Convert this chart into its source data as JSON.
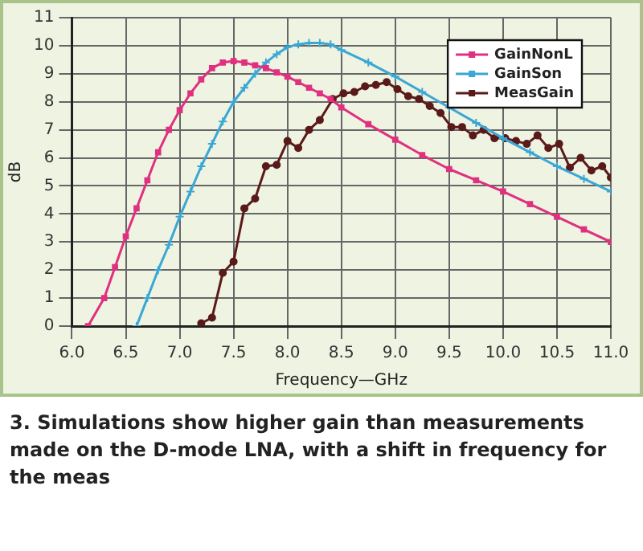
{
  "chart_data": {
    "type": "line",
    "xlabel": "Frequency—GHz",
    "ylabel": "dB",
    "xlim": [
      6.0,
      11.0
    ],
    "ylim": [
      0,
      11
    ],
    "xticks": [
      {
        "value": 6,
        "label": "6.0"
      },
      {
        "value": 6.5,
        "label": "6.5"
      },
      {
        "value": 7,
        "label": "7.0"
      },
      {
        "value": 7.5,
        "label": "7.5"
      },
      {
        "value": 8,
        "label": "8.0"
      },
      {
        "value": 8.5,
        "label": "8.5"
      },
      {
        "value": 9,
        "label": "9.0"
      },
      {
        "value": 9.5,
        "label": "9.5"
      },
      {
        "value": 10,
        "label": "10.0"
      },
      {
        "value": 10.5,
        "label": "10.5"
      },
      {
        "value": 11,
        "label": "11.0"
      }
    ],
    "yticks": [
      0,
      1,
      2,
      3,
      4,
      5,
      6,
      7,
      8,
      9,
      10,
      11
    ],
    "grid": true,
    "legend": "top right",
    "line_style": "solid",
    "series": [
      {
        "name": "GainNonL",
        "color": "#e0307f",
        "marker": "square",
        "x": [
          6.15,
          6.3,
          6.4,
          6.5,
          6.6,
          6.7,
          6.8,
          6.9,
          7.0,
          7.1,
          7.2,
          7.3,
          7.4,
          7.5,
          7.6,
          7.7,
          7.8,
          7.9,
          8.0,
          8.1,
          8.2,
          8.3,
          8.4,
          8.5,
          8.75,
          9.0,
          9.25,
          9.5,
          9.75,
          10.0,
          10.25,
          10.5,
          10.75,
          11.0
        ],
        "values": [
          0,
          1.0,
          2.1,
          3.2,
          4.2,
          5.2,
          6.2,
          7.0,
          7.7,
          8.3,
          8.8,
          9.2,
          9.4,
          9.45,
          9.4,
          9.3,
          9.2,
          9.05,
          8.9,
          8.7,
          8.5,
          8.3,
          8.1,
          7.8,
          7.2,
          6.65,
          6.1,
          5.6,
          5.2,
          4.8,
          4.35,
          3.9,
          3.45,
          3.0
        ]
      },
      {
        "name": "GainSon",
        "color": "#3ba7d4",
        "marker": "cross",
        "x": [
          6.6,
          6.7,
          6.8,
          6.9,
          7.0,
          7.1,
          7.2,
          7.3,
          7.4,
          7.5,
          7.6,
          7.7,
          7.8,
          7.9,
          8.0,
          8.1,
          8.2,
          8.3,
          8.4,
          8.5,
          8.75,
          9.0,
          9.25,
          9.5,
          9.75,
          10.0,
          10.25,
          10.5,
          10.75,
          11.0
        ],
        "values": [
          0,
          1.0,
          2.0,
          2.9,
          3.9,
          4.8,
          5.7,
          6.5,
          7.3,
          8.0,
          8.5,
          9.0,
          9.4,
          9.7,
          9.95,
          10.05,
          10.1,
          10.1,
          10.05,
          9.85,
          9.4,
          8.9,
          8.35,
          7.8,
          7.25,
          6.7,
          6.2,
          5.7,
          5.25,
          4.8
        ]
      },
      {
        "name": "MeasGain",
        "color": "#5a1a1a",
        "marker": "circle",
        "x": [
          7.2,
          7.3,
          7.4,
          7.5,
          7.6,
          7.7,
          7.8,
          7.9,
          8.0,
          8.1,
          8.2,
          8.3,
          8.42,
          8.52,
          8.62,
          8.72,
          8.82,
          8.92,
          9.02,
          9.12,
          9.22,
          9.32,
          9.42,
          9.52,
          9.62,
          9.72,
          9.82,
          9.92,
          10.02,
          10.12,
          10.22,
          10.32,
          10.42,
          10.52,
          10.62,
          10.72,
          10.82,
          10.92,
          11.0
        ],
        "values": [
          0.1,
          0.3,
          1.9,
          2.3,
          4.2,
          4.55,
          5.7,
          5.75,
          6.6,
          6.35,
          7.0,
          7.35,
          8.1,
          8.3,
          8.35,
          8.55,
          8.6,
          8.7,
          8.45,
          8.2,
          8.1,
          7.85,
          7.6,
          7.1,
          7.1,
          6.8,
          7.0,
          6.7,
          6.7,
          6.6,
          6.5,
          6.8,
          6.35,
          6.5,
          5.65,
          6.0,
          5.55,
          5.7,
          5.3
        ]
      }
    ],
    "annotations": [
      "3. Simulations show higher gain than measurements made on the D-mode LNA, with a shift in frequency for the meas"
    ]
  }
}
